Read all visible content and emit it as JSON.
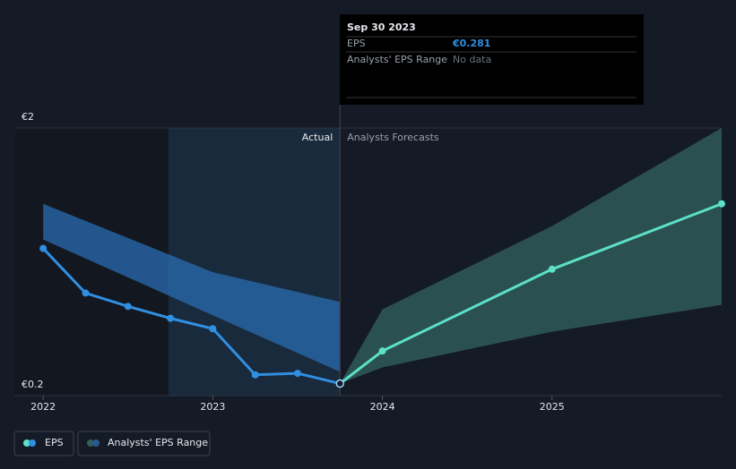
{
  "chart_data": {
    "type": "line",
    "xlim": [
      2021.83,
      2026.0
    ],
    "xticks": [
      2022,
      2023,
      2024,
      2025
    ],
    "ylim": [
      0.2,
      2
    ],
    "yticks": [
      {
        "value": 0.2,
        "label": "€0.2"
      },
      {
        "value": 2,
        "label": "€2"
      }
    ],
    "divider_x": 2023.75,
    "divider_labels": [
      "Actual",
      "Analysts Forecasts"
    ],
    "series": [
      {
        "name": "EPS",
        "color": "#2f8fe0",
        "x": [
          2022,
          2022.25,
          2022.5,
          2022.75,
          2023,
          2023.25,
          2023.5,
          2023.75
        ],
        "values": [
          1.19,
          0.89,
          0.8,
          0.72,
          0.65,
          0.34,
          0.35,
          0.281
        ]
      }
    ],
    "forecast": {
      "color": "#5ce0c8",
      "x": [
        2023.75,
        2024,
        2025,
        2026.0
      ],
      "values": [
        0.281,
        0.5,
        1.05,
        1.49
      ]
    },
    "actual_range": {
      "color": "#2a6cb0",
      "x": [
        2022,
        2023,
        2023.75
      ],
      "low": [
        1.25,
        0.74,
        0.36
      ],
      "high": [
        1.49,
        1.03,
        0.83
      ]
    },
    "forecast_range": {
      "name": "Analysts' EPS Range",
      "color": "#2f5f5b",
      "x": [
        2023.75,
        2024,
        2025,
        2026.0
      ],
      "low": [
        0.281,
        0.39,
        0.63,
        0.81
      ],
      "high": [
        0.281,
        0.78,
        1.34,
        2.0
      ]
    },
    "tooltip": {
      "date": "Sep 30 2023",
      "rows": [
        [
          "EPS",
          "€0.281"
        ],
        [
          "Analysts' EPS Range",
          "No data"
        ]
      ]
    }
  }
}
